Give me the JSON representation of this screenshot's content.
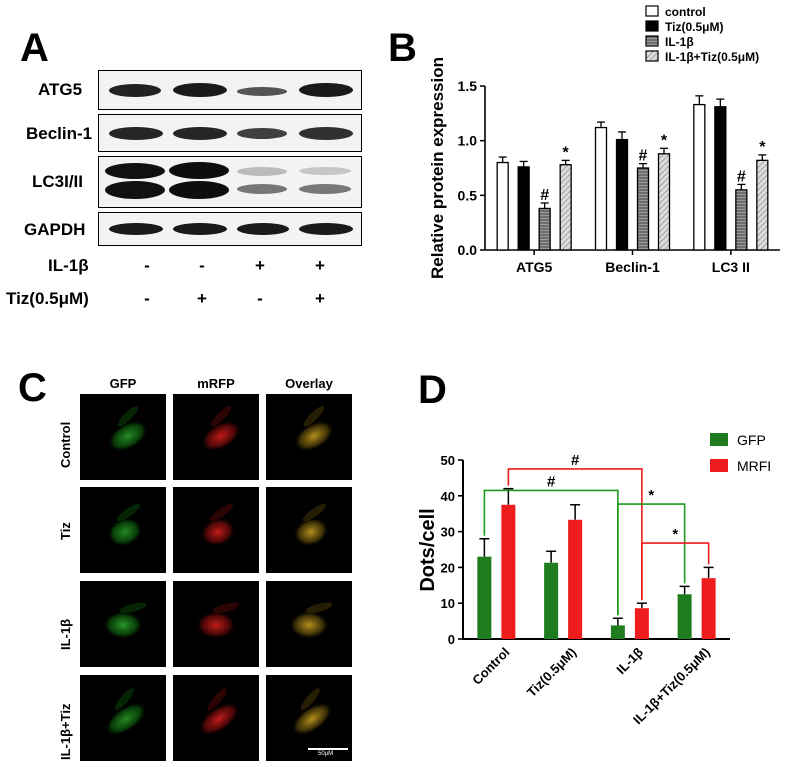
{
  "panels": {
    "a": "A",
    "b": "B",
    "c": "C",
    "d": "D"
  },
  "blot": {
    "rows": [
      "ATG5",
      "Beclin-1",
      "LC3I/II",
      "GAPDH"
    ],
    "conditions": [
      {
        "label": "IL-1β",
        "signs": [
          "-",
          "-",
          "+",
          "+"
        ]
      },
      {
        "label": "Tiz(0.5μM)",
        "signs": [
          "-",
          "+",
          "-",
          "+"
        ]
      }
    ]
  },
  "microscopy": {
    "columns": [
      "GFP",
      "mRFP",
      "Overlay"
    ],
    "rows": [
      "Control",
      "Tiz",
      "IL-1β",
      "IL-1β+Tiz"
    ],
    "scale_bar": "50μM"
  },
  "chart_data": [
    {
      "type": "bar",
      "categories": [
        "ATG5",
        "Beclin-1",
        "LC3 II"
      ],
      "series": [
        {
          "name": "control",
          "values": [
            0.8,
            1.12,
            1.33
          ],
          "errors": [
            0.05,
            0.05,
            0.08
          ],
          "color": "#ffffff",
          "pattern": "none"
        },
        {
          "name": "Tiz(0.5μM)",
          "values": [
            0.76,
            1.01,
            1.31
          ],
          "errors": [
            0.05,
            0.07,
            0.07
          ],
          "color": "#000000",
          "pattern": "none"
        },
        {
          "name": "IL-1β",
          "values": [
            0.38,
            0.75,
            0.55
          ],
          "errors": [
            0.05,
            0.04,
            0.05
          ],
          "color": "#888888",
          "pattern": "horizontal"
        },
        {
          "name": "IL-1β+Tiz(0.5μM)",
          "values": [
            0.78,
            0.88,
            0.82
          ],
          "errors": [
            0.04,
            0.05,
            0.05
          ],
          "color": "#cccccc",
          "pattern": "diagonal"
        }
      ],
      "annotations": [
        {
          "category": "ATG5",
          "series": "IL-1β",
          "text": "#"
        },
        {
          "category": "ATG5",
          "series": "IL-1β+Tiz(0.5μM)",
          "text": "*"
        },
        {
          "category": "Beclin-1",
          "series": "IL-1β",
          "text": "#"
        },
        {
          "category": "Beclin-1",
          "series": "IL-1β+Tiz(0.5μM)",
          "text": "*"
        },
        {
          "category": "LC3 II",
          "series": "IL-1β",
          "text": "#"
        },
        {
          "category": "LC3 II",
          "series": "IL-1β+Tiz(0.5μM)",
          "text": "*"
        }
      ],
      "ylabel": "Relative protein expression",
      "ylim": [
        0,
        1.5
      ],
      "yticks": [
        "0.0",
        "0.5",
        "1.0",
        "1.5"
      ],
      "legend_position": "top-right",
      "grid": false
    },
    {
      "type": "bar",
      "categories": [
        "Control",
        "Tiz(0.5μM)",
        "IL-1β",
        "IL-1β+Tiz(0.5μM)"
      ],
      "series": [
        {
          "name": "GFP",
          "values": [
            23,
            21.3,
            3.8,
            12.5
          ],
          "errors": [
            5,
            3.2,
            2,
            2.2
          ],
          "color": "#1e7b1e"
        },
        {
          "name": "MRFP",
          "values": [
            37.5,
            33.3,
            8.6,
            17
          ],
          "errors": [
            4.5,
            4.2,
            1.4,
            3
          ],
          "color": "#ee1c1c"
        }
      ],
      "brackets": [
        {
          "from": "Control",
          "from_series": "MRFP",
          "to": "IL-1β",
          "to_series": "MRFP",
          "text": "#",
          "color": "#ee1c1c"
        },
        {
          "from": "Control",
          "from_series": "GFP",
          "to": "IL-1β",
          "to_series": "GFP",
          "text": "#",
          "color": "#1e9b1e"
        },
        {
          "from": "IL-1β",
          "from_series": "GFP",
          "to": "IL-1β+Tiz(0.5μM)",
          "to_series": "GFP",
          "text": "*",
          "color": "#1e9b1e"
        },
        {
          "from": "IL-1β",
          "from_series": "MRFP",
          "to": "IL-1β+Tiz(0.5μM)",
          "to_series": "MRFP",
          "text": "*",
          "color": "#ee1c1c"
        }
      ],
      "ylabel": "Dots/cell",
      "ylim": [
        0,
        50
      ],
      "yticks": [
        "0",
        "10",
        "20",
        "30",
        "40",
        "50"
      ],
      "legend_position": "top-right",
      "grid": false
    }
  ]
}
